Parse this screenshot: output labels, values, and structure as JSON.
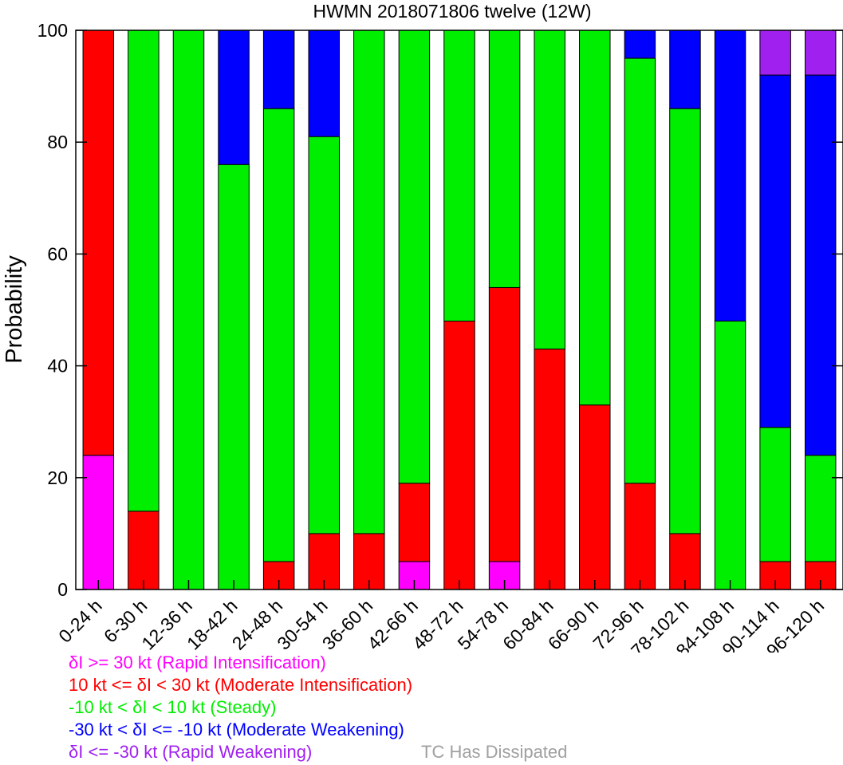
{
  "chart_data": {
    "type": "bar",
    "stacked": true,
    "title": "HWMN 2018071806 twelve (12W)",
    "xlabel": "",
    "ylabel": "Probability",
    "ylim": [
      0,
      100
    ],
    "yticks": [
      0,
      20,
      40,
      60,
      80,
      100
    ],
    "categories": [
      "0-24 h",
      "6-30 h",
      "12-36 h",
      "18-42 h",
      "24-48 h",
      "30-54 h",
      "36-60 h",
      "42-66 h",
      "48-72 h",
      "54-78 h",
      "60-84 h",
      "66-90 h",
      "72-96 h",
      "78-102 h",
      "84-108 h",
      "90-114 h",
      "96-120 h"
    ],
    "series": [
      {
        "name": "δI >= 30 kt (Rapid Intensification)",
        "color": "#ff00ff",
        "values": [
          24,
          0,
          0,
          0,
          0,
          0,
          0,
          5,
          0,
          5,
          0,
          0,
          0,
          0,
          0,
          0,
          0
        ]
      },
      {
        "name": "10 kt <= δI < 30 kt (Moderate Intensification)",
        "color": "#ff0000",
        "values": [
          76,
          14,
          0,
          0,
          5,
          10,
          10,
          14,
          48,
          49,
          43,
          33,
          19,
          10,
          0,
          5,
          5
        ]
      },
      {
        "name": "-10 kt < δI < 10 kt (Steady)",
        "color": "#00ee00",
        "values": [
          0,
          86,
          100,
          76,
          81,
          71,
          90,
          81,
          52,
          46,
          57,
          67,
          76,
          76,
          48,
          24,
          19
        ]
      },
      {
        "name": "-30 kt < δI <= -10 kt (Moderate Weakening)",
        "color": "#0000ff",
        "values": [
          0,
          0,
          0,
          24,
          14,
          19,
          0,
          0,
          0,
          0,
          0,
          0,
          5,
          14,
          52,
          63,
          68
        ]
      },
      {
        "name": "δI <= -30 kt (Rapid Weakening)",
        "color": "#a020f0",
        "values": [
          0,
          0,
          0,
          0,
          0,
          0,
          0,
          0,
          0,
          0,
          0,
          0,
          0,
          0,
          0,
          8,
          8
        ]
      }
    ],
    "extra_legend": {
      "name": "TC Has Dissipated",
      "color": "#a0a0a0"
    },
    "legend_placement": "bottom-left",
    "grid": false
  }
}
